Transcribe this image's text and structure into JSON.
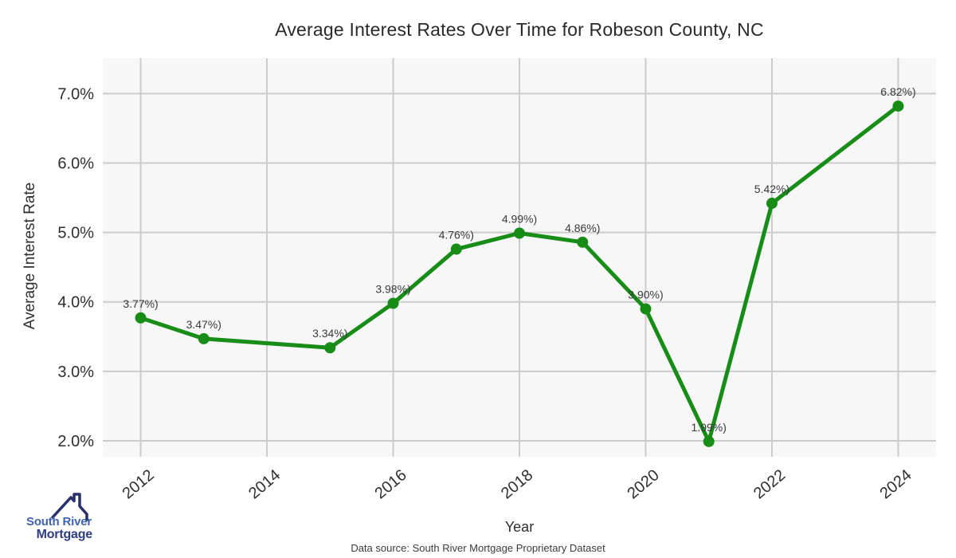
{
  "chart_data": {
    "type": "line",
    "title": "Average Interest Rates Over Time for Robeson County, NC",
    "xlabel": "Year",
    "ylabel": "Average Interest Rate",
    "x": [
      2012,
      2013,
      2015,
      2016,
      2017,
      2018,
      2019,
      2020,
      2021,
      2022,
      2024
    ],
    "values": [
      3.77,
      3.47,
      3.34,
      3.98,
      4.76,
      4.99,
      4.86,
      3.9,
      1.99,
      5.42,
      6.82
    ],
    "point_labels": [
      "3.77%)",
      "3.47%)",
      "3.34%)",
      "3.98%)",
      "4.76%)",
      "4.99%)",
      "4.86%)",
      "3.90%)",
      "1.99%)",
      "5.42%)",
      "6.82%)"
    ],
    "x_ticks": [
      2012,
      2014,
      2016,
      2018,
      2020,
      2022,
      2024
    ],
    "y_ticks": [
      {
        "value": 2,
        "label": "2.0%"
      },
      {
        "value": 3,
        "label": "3.0%"
      },
      {
        "value": 4,
        "label": "4.0%"
      },
      {
        "value": 5,
        "label": "5.0%"
      },
      {
        "value": 6,
        "label": "6.0%"
      },
      {
        "value": 7,
        "label": "7.0%"
      }
    ],
    "xlim": [
      2011.4,
      2024.6
    ],
    "ylim": [
      1.77,
      7.51
    ],
    "grid": true,
    "legend": "none",
    "line_color": "#178c17",
    "marker_color": "#178c17",
    "panel_bg": "#f7f7f7",
    "grid_color": "#cccccc",
    "tick_color": "#2e2e2e",
    "point_label_color": "#3a3a3a"
  },
  "footer": {
    "source_text": "Data source: South River Mortgage Proprietary Dataset"
  },
  "logo": {
    "line1": "South River",
    "line2": "Mortgage",
    "line1_color": "#4063ae",
    "line2_color": "#2e3d7d",
    "icon_color": "#27306b"
  }
}
